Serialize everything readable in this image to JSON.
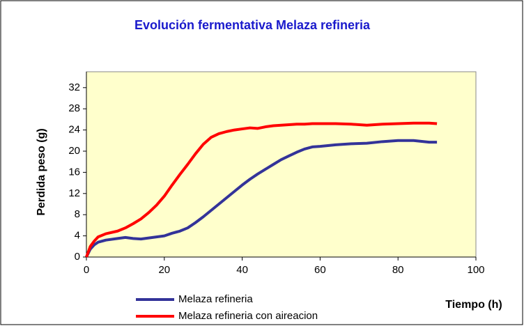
{
  "chart_data": {
    "type": "line",
    "title": "Evolución fermentativa Melaza refineria",
    "y_label": "Perdida peso (g)",
    "x_label": "Tiempo (h)",
    "x": [
      0,
      1,
      2,
      3,
      5,
      8,
      10,
      12,
      14,
      16,
      18,
      20,
      22,
      24,
      26,
      28,
      30,
      32,
      34,
      36,
      38,
      40,
      42,
      44,
      46,
      48,
      50,
      52,
      54,
      56,
      58,
      60,
      64,
      68,
      72,
      76,
      80,
      84,
      88,
      90
    ],
    "series": [
      {
        "name": "Melaza refineria",
        "color": "#333399",
        "values": [
          0,
          1.5,
          2.3,
          2.8,
          3.2,
          3.5,
          3.7,
          3.5,
          3.4,
          3.6,
          3.8,
          4.0,
          4.5,
          4.9,
          5.5,
          6.5,
          7.6,
          8.8,
          10,
          11.2,
          12.4,
          13.6,
          14.7,
          15.7,
          16.6,
          17.5,
          18.4,
          19.1,
          19.8,
          20.4,
          20.8,
          20.9,
          21.2,
          21.4,
          21.5,
          21.8,
          22.0,
          22.0,
          21.7,
          21.7
        ]
      },
      {
        "name": "Melaza refineria con aireacion",
        "color": "#ff0000",
        "values": [
          0,
          2,
          3,
          3.8,
          4.4,
          4.9,
          5.5,
          6.3,
          7.2,
          8.4,
          9.8,
          11.5,
          13.6,
          15.6,
          17.5,
          19.5,
          21.3,
          22.6,
          23.3,
          23.7,
          24.0,
          24.2,
          24.4,
          24.3,
          24.6,
          24.8,
          24.9,
          25.0,
          25.1,
          25.1,
          25.2,
          25.2,
          25.2,
          25.1,
          24.9,
          25.1,
          25.2,
          25.3,
          25.3,
          25.2
        ]
      }
    ],
    "xlim": [
      0,
      100
    ],
    "xticks": [
      0,
      20,
      40,
      60,
      80,
      100
    ],
    "ylim": [
      0,
      35
    ],
    "yticks": [
      0,
      4,
      8,
      12,
      16,
      20,
      24,
      28,
      32
    ],
    "plot_background": "#ffffcc"
  }
}
